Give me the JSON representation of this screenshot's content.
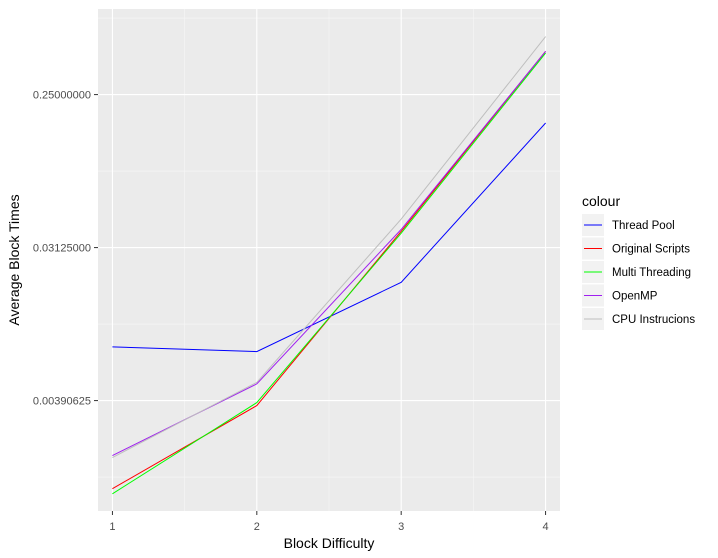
{
  "chart_data": {
    "type": "line",
    "title": "",
    "xlabel": "Block Difficulty",
    "ylabel": "Average Block Times",
    "x": [
      1,
      2,
      3,
      4
    ],
    "xticks": [
      "1",
      "2",
      "3",
      "4"
    ],
    "xlim": [
      0.9,
      4.1
    ],
    "yscale": "log2",
    "ylim": [
      0.000871,
      0.8
    ],
    "yticks": [
      {
        "value": 0.00390625,
        "label": "0.00390625"
      },
      {
        "value": 0.03125,
        "label": "0.03125000"
      },
      {
        "value": 0.25,
        "label": "0.25000000"
      }
    ],
    "grid": true,
    "legend": {
      "title": "colour",
      "placement": "right"
    },
    "series": [
      {
        "name": "Thread Pool",
        "color": "#0000ff",
        "values": [
          0.0081,
          0.0076,
          0.0195,
          0.17
        ]
      },
      {
        "name": "Original Scripts",
        "color": "#ff0000",
        "values": [
          0.00118,
          0.00365,
          0.039,
          0.45
        ]
      },
      {
        "name": "Multi Threading",
        "color": "#00ff00",
        "values": [
          0.0011,
          0.0038,
          0.038,
          0.44
        ]
      },
      {
        "name": "OpenMP",
        "color": "#a020f0",
        "values": [
          0.00185,
          0.0049,
          0.04,
          0.45
        ]
      },
      {
        "name": "CPU Instrucions",
        "color": "#bebebe",
        "values": [
          0.0018,
          0.005,
          0.046,
          0.55
        ]
      }
    ]
  }
}
